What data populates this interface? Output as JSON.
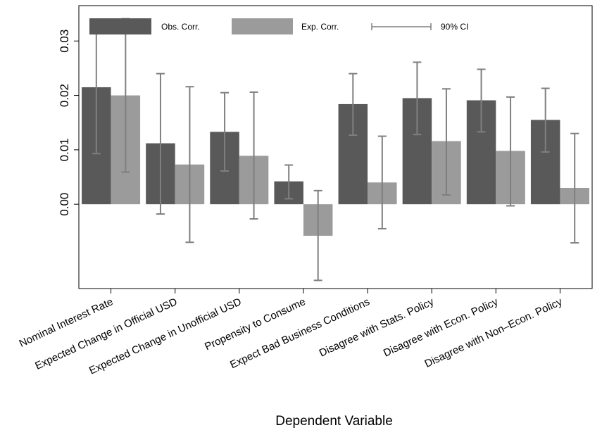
{
  "chart_data": {
    "type": "bar",
    "xlabel": "Dependent Variable",
    "ylabel": "",
    "ylim": [
      -0.0155,
      0.0365
    ],
    "yticks": [
      0.0,
      0.01,
      0.02,
      0.03
    ],
    "ytick_labels": [
      "0.00",
      "0.01",
      "0.02",
      "0.03"
    ],
    "grid": false,
    "legend_position": "top",
    "categories": [
      "Nominal Interest Rate",
      "Expected Change in Official USD",
      "Expected Change in Unofficial USD",
      "Propensity to Consume",
      "Expect Bad Business Conditions",
      "Disagree with Stats. Policy",
      "Disagree with Econ. Policy",
      "Disagree with Non–Econ. Policy"
    ],
    "series": [
      {
        "name": "Obs. Corr.",
        "color": "#595959",
        "values": [
          0.0215,
          0.0112,
          0.0133,
          0.0042,
          0.0184,
          0.0195,
          0.0191,
          0.0155
        ],
        "ci_low": [
          0.0093,
          -0.0018,
          0.0061,
          0.001,
          0.0127,
          0.0128,
          0.0133,
          0.0096
        ],
        "ci_high": [
          0.0335,
          0.024,
          0.0205,
          0.0072,
          0.024,
          0.0261,
          0.0248,
          0.0213
        ]
      },
      {
        "name": "Exp. Corr.",
        "color": "#9b9b9b",
        "values": [
          0.02,
          0.0073,
          0.0089,
          -0.0058,
          0.004,
          0.0116,
          0.0098,
          0.003
        ],
        "ci_low": [
          0.0059,
          -0.007,
          -0.0027,
          -0.014,
          -0.0045,
          0.0017,
          -0.0003,
          -0.0071
        ],
        "ci_high": [
          0.0341,
          0.0216,
          0.0206,
          0.0025,
          0.0125,
          0.0212,
          0.0197,
          0.013
        ]
      }
    ],
    "legend": {
      "obs_label": "Obs. Corr.",
      "exp_label": "Exp. Corr.",
      "ci_label": "90% CI"
    },
    "ci_color": "#7f7f7f"
  }
}
